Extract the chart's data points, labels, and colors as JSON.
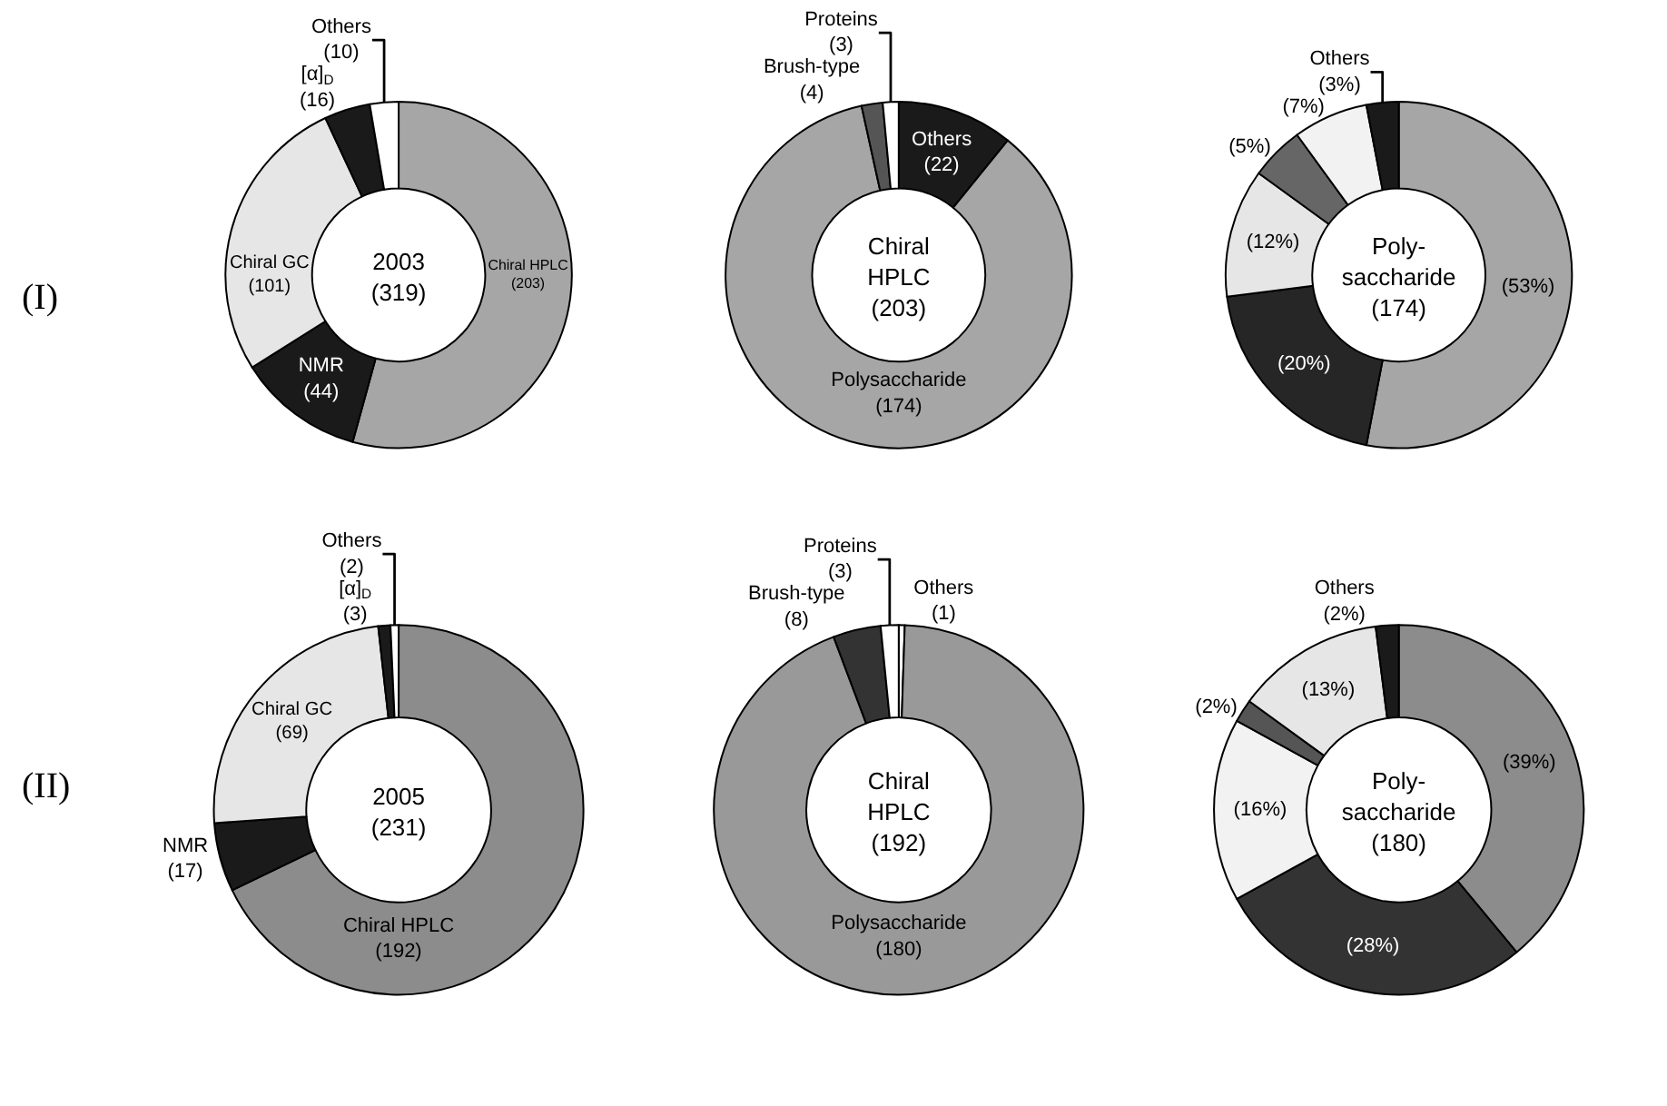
{
  "chart_data": [
    {
      "type": "donut",
      "title": "2003 (319)",
      "annotations": [
        "(I)"
      ],
      "categories": [
        "Chiral HPLC",
        "NMR",
        "Chiral GC",
        "[α]$_{D}$",
        "Others"
      ],
      "values": [
        203,
        44,
        101,
        16,
        10
      ],
      "value_labels": [
        "(203)",
        "(44)",
        "(101)",
        "(16)",
        "(10)"
      ],
      "colors": [
        "#a6a6a6",
        "#1a1a1a",
        "#e6e6e6",
        "#1a1a1a",
        "#ffffff"
      ]
    },
    {
      "type": "donut",
      "title": "Chiral HPLC (203)",
      "categories": [
        "Others",
        "Polysaccharide",
        "Brush-type",
        "Proteins"
      ],
      "values": [
        22,
        174,
        4,
        3
      ],
      "value_labels": [
        "(22)",
        "(174)",
        "(4)",
        "(3)"
      ],
      "colors": [
        "#1a1a1a",
        "#a6a6a6",
        "#555555",
        "#ffffff"
      ]
    },
    {
      "type": "donut",
      "title": "Poly-saccharide (174)",
      "categories": [
        null,
        null,
        null,
        null,
        null,
        "Others"
      ],
      "values": [
        53,
        20,
        12,
        5,
        7,
        3
      ],
      "value_labels": [
        "(53%)",
        "(20%)",
        "(12%)",
        "(5%)",
        "(7%)",
        "(3%)"
      ],
      "colors": [
        "#a6a6a6",
        "#262626",
        "#e6e6e6",
        "#666666",
        "#f2f2f2",
        "#1a1a1a"
      ]
    },
    {
      "type": "donut",
      "title": "2005 (231)",
      "annotations": [
        "(II)"
      ],
      "categories": [
        "Chiral HPLC",
        "NMR",
        "Chiral GC",
        "[α]$_{D}$",
        "Others"
      ],
      "values": [
        192,
        17,
        69,
        3,
        2
      ],
      "value_labels": [
        "(192)",
        "(17)",
        "(69)",
        "(3)",
        "(2)"
      ],
      "colors": [
        "#8c8c8c",
        "#1a1a1a",
        "#e6e6e6",
        "#1a1a1a",
        "#ffffff"
      ]
    },
    {
      "type": "donut",
      "title": "Chiral HPLC (192)",
      "categories": [
        "Others",
        "Polysaccharide",
        "Brush-type",
        "Proteins"
      ],
      "values": [
        1,
        180,
        8,
        3
      ],
      "value_labels": [
        "(1)",
        "(180)",
        "(8)",
        "(3)"
      ],
      "colors": [
        "#ffffff",
        "#999999",
        "#333333",
        "#ffffff"
      ]
    },
    {
      "type": "donut",
      "title": "Poly-saccharide (180)",
      "categories": [
        null,
        null,
        null,
        null,
        null,
        "Others"
      ],
      "values": [
        39,
        28,
        16,
        2,
        13,
        2
      ],
      "value_labels": [
        "(39%)",
        "(28%)",
        "(16%)",
        "(2%)",
        "(13%)",
        "(2%)"
      ],
      "colors": [
        "#8c8c8c",
        "#333333",
        "#f2f2f2",
        "#555555",
        "#e6e6e6",
        "#1a1a1a"
      ]
    }
  ]
}
